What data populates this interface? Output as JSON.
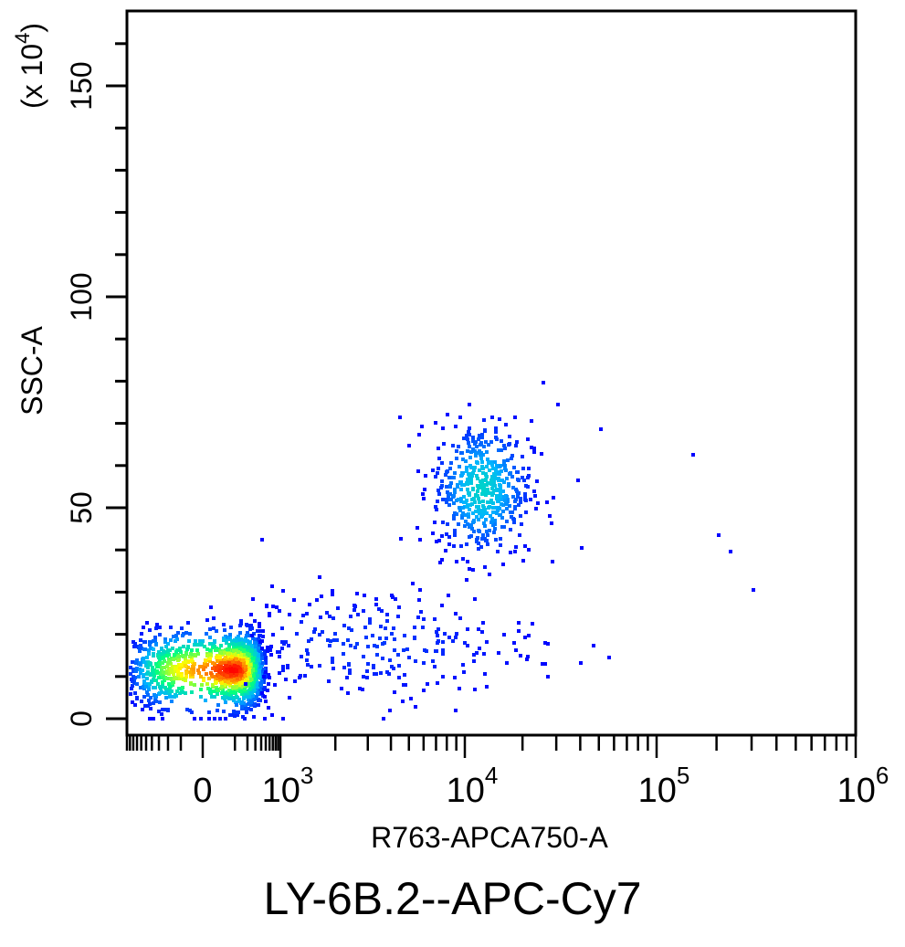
{
  "caption": "LY-6B.2--APC-Cy7",
  "chart_data": {
    "type": "scatter",
    "xlabel": "R763-APCA750-A",
    "ylabel": "SSC-A",
    "y_multiplier_label": "(x 10",
    "y_multiplier_exp": "4",
    "y_multiplier_close": ")",
    "x_scale": "biexponential",
    "xlim": [
      -300,
      1000000
    ],
    "ylim": [
      -3,
      168
    ],
    "y_ticks": [
      {
        "value": 0,
        "label": "0"
      },
      {
        "value": 50,
        "label": "50"
      },
      {
        "value": 100,
        "label": "100"
      },
      {
        "value": 150,
        "label": "150"
      }
    ],
    "x_ticks": [
      {
        "value": 0,
        "base": "0",
        "exp": ""
      },
      {
        "value": 1000,
        "base": "10",
        "exp": "3"
      },
      {
        "value": 10000,
        "base": "10",
        "exp": "4"
      },
      {
        "value": 100000,
        "base": "10",
        "exp": "5"
      },
      {
        "value": 1000000,
        "base": "10",
        "exp": "6"
      }
    ],
    "grid": false,
    "color_scale": [
      "#0000ff",
      "#00b4ff",
      "#00ff80",
      "#ffff00",
      "#ff0000"
    ],
    "populations": [
      {
        "x_center": 80,
        "y_center": 12,
        "x_spread": 160,
        "y_spread": 4.5,
        "count": 1400,
        "peak_density": "high"
      },
      {
        "x_center": 12000,
        "y_center": 55,
        "x_spread": 0.13,
        "y_spread": 8,
        "count": 520,
        "peak_density": "medium"
      },
      {
        "x_center": 3000,
        "y_center": 18,
        "x_spread": 0.45,
        "y_spread": 7,
        "count": 260,
        "peak_density": "low"
      }
    ],
    "outliers": [
      {
        "x": 150000,
        "y": 63
      },
      {
        "x": 200000,
        "y": 44
      },
      {
        "x": 230000,
        "y": 40
      },
      {
        "x": 300000,
        "y": 31
      },
      {
        "x": 40000,
        "y": 41
      },
      {
        "x": 38000,
        "y": 57
      },
      {
        "x": 50000,
        "y": 69
      },
      {
        "x": 25000,
        "y": 80
      },
      {
        "x": 30000,
        "y": 75
      }
    ]
  }
}
